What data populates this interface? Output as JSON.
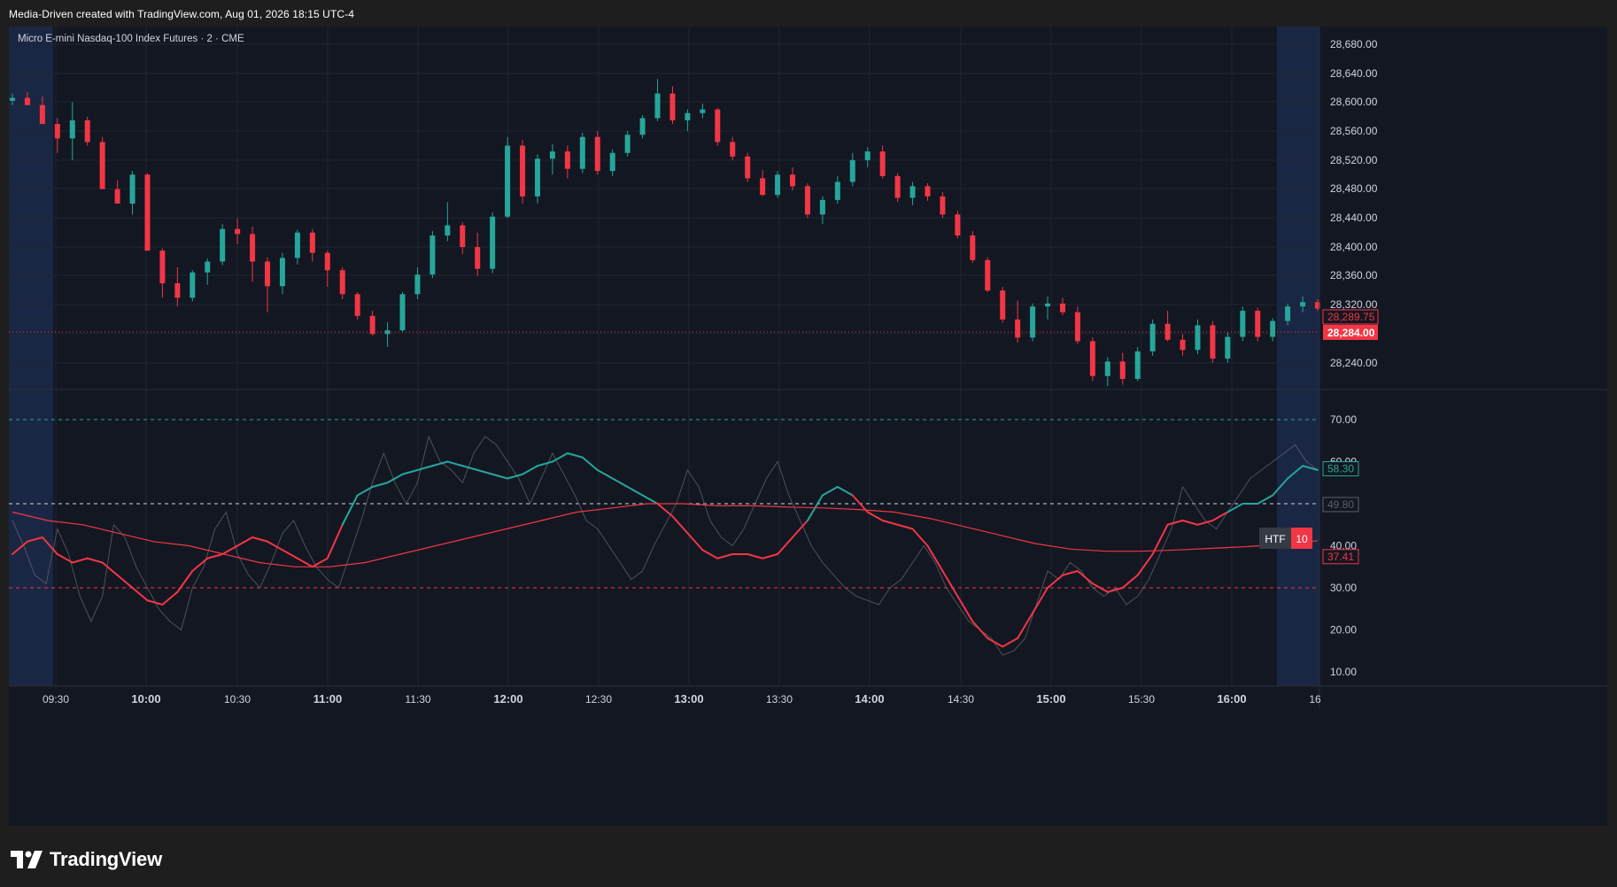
{
  "header": {
    "watermark_text": "Media-Driven created with TradingView.com, Aug 01, 2026 18:15 UTC-4"
  },
  "chart": {
    "symbol_label": "Micro E-mini Nasdaq-100 Index Futures · 2 · CME",
    "price_axis_labels": [
      "28,680.00",
      "28,640.00",
      "28,600.00",
      "28,560.00",
      "28,520.00",
      "28,480.00",
      "28,440.00",
      "28,400.00",
      "28,360.00",
      "28,320.00",
      "28,240.00"
    ],
    "current_price_tag": "28,289.75",
    "last_price_tag": "28,284.00",
    "time_axis_labels": [
      {
        "text": "09:30",
        "major": false
      },
      {
        "text": "10:00",
        "major": true
      },
      {
        "text": "10:30",
        "major": false
      },
      {
        "text": "11:00",
        "major": true
      },
      {
        "text": "11:30",
        "major": false
      },
      {
        "text": "12:00",
        "major": true
      },
      {
        "text": "12:30",
        "major": false
      },
      {
        "text": "13:00",
        "major": true
      },
      {
        "text": "13:30",
        "major": false
      },
      {
        "text": "14:00",
        "major": true
      },
      {
        "text": "14:30",
        "major": false
      },
      {
        "text": "15:00",
        "major": true
      },
      {
        "text": "15:30",
        "major": false
      },
      {
        "text": "16:00",
        "major": true
      },
      {
        "text": "16",
        "major": false
      }
    ],
    "indicator_axis_labels": [
      "70.00",
      "60.00",
      "40.00",
      "30.00",
      "20.00",
      "10.00"
    ],
    "indicator_tags": {
      "fast": "58.30",
      "mid": "49.80",
      "slow": "37.41"
    },
    "htf_badge": {
      "label": "HTF",
      "value": "10"
    },
    "colors": {
      "background": "#131722",
      "up": "#26a69a",
      "down": "#f23645",
      "grid": "#1f2430",
      "session_shade": "#1a2744"
    }
  },
  "chart_data": {
    "type": "candlestick",
    "price_ylim": [
      28200,
      28700
    ],
    "ohlc_approx": [
      [
        28602,
        28612,
        28596,
        28606
      ],
      [
        28606,
        28614,
        28600,
        28596
      ],
      [
        28596,
        28608,
        28580,
        28570
      ],
      [
        28570,
        28578,
        28530,
        28550
      ],
      [
        28550,
        28600,
        28520,
        28575
      ],
      [
        28575,
        28580,
        28540,
        28545
      ],
      [
        28545,
        28552,
        28500,
        28480
      ],
      [
        28480,
        28492,
        28470,
        28460
      ],
      [
        28460,
        28505,
        28445,
        28500
      ],
      [
        28500,
        28502,
        28395,
        28395
      ],
      [
        28395,
        28398,
        28330,
        28350
      ],
      [
        28350,
        28372,
        28318,
        28330
      ],
      [
        28330,
        28368,
        28325,
        28365
      ],
      [
        28365,
        28384,
        28348,
        28380
      ],
      [
        28380,
        28432,
        28375,
        28425
      ],
      [
        28425,
        28440,
        28404,
        28418
      ],
      [
        28418,
        28428,
        28352,
        28380
      ],
      [
        28380,
        28386,
        28310,
        28346
      ],
      [
        28346,
        28392,
        28335,
        28385
      ],
      [
        28385,
        28424,
        28376,
        28420
      ],
      [
        28420,
        28425,
        28380,
        28392
      ],
      [
        28392,
        28395,
        28345,
        28368
      ],
      [
        28368,
        28372,
        28328,
        28335
      ],
      [
        28335,
        28338,
        28300,
        28305
      ],
      [
        28305,
        28312,
        28278,
        28280
      ],
      [
        28280,
        28296,
        28262,
        28285
      ],
      [
        28285,
        28338,
        28283,
        28335
      ],
      [
        28335,
        28372,
        28328,
        28362
      ],
      [
        28362,
        28422,
        28357,
        28416
      ],
      [
        28416,
        28462,
        28408,
        28430
      ],
      [
        28430,
        28434,
        28390,
        28400
      ],
      [
        28400,
        28420,
        28360,
        28370
      ],
      [
        28370,
        28448,
        28364,
        28442
      ],
      [
        28442,
        28552,
        28440,
        28540
      ],
      [
        28540,
        28548,
        28460,
        28470
      ],
      [
        28470,
        28528,
        28460,
        28522
      ],
      [
        28522,
        28542,
        28500,
        28532
      ],
      [
        28532,
        28540,
        28495,
        28508
      ],
      [
        28508,
        28558,
        28502,
        28552
      ],
      [
        28552,
        28560,
        28500,
        28505
      ],
      [
        28505,
        28535,
        28498,
        28530
      ],
      [
        28530,
        28560,
        28525,
        28555
      ],
      [
        28555,
        28582,
        28550,
        28578
      ],
      [
        28578,
        28632,
        28574,
        28612
      ],
      [
        28612,
        28622,
        28570,
        28575
      ],
      [
        28575,
        28590,
        28560,
        28585
      ],
      [
        28585,
        28598,
        28578,
        28590
      ],
      [
        28590,
        28592,
        28540,
        28545
      ],
      [
        28545,
        28552,
        28520,
        28525
      ],
      [
        28525,
        28530,
        28490,
        28495
      ],
      [
        28495,
        28506,
        28470,
        28472
      ],
      [
        28472,
        28505,
        28468,
        28500
      ],
      [
        28500,
        28510,
        28478,
        28484
      ],
      [
        28484,
        28488,
        28440,
        28445
      ],
      [
        28445,
        28470,
        28432,
        28465
      ],
      [
        28465,
        28498,
        28460,
        28490
      ],
      [
        28490,
        28530,
        28484,
        28520
      ],
      [
        28520,
        28538,
        28510,
        28532
      ],
      [
        28532,
        28540,
        28495,
        28498
      ],
      [
        28498,
        28502,
        28462,
        28468
      ],
      [
        28468,
        28490,
        28458,
        28484
      ],
      [
        28484,
        28488,
        28464,
        28470
      ],
      [
        28470,
        28476,
        28440,
        28445
      ],
      [
        28445,
        28450,
        28412,
        28416
      ],
      [
        28416,
        28422,
        28378,
        28382
      ],
      [
        28382,
        28386,
        28338,
        28340
      ],
      [
        28340,
        28345,
        28296,
        28300
      ],
      [
        28300,
        28326,
        28268,
        28275
      ],
      [
        28275,
        28322,
        28270,
        28318
      ],
      [
        28318,
        28332,
        28300,
        28322
      ],
      [
        28322,
        28330,
        28306,
        28310
      ],
      [
        28310,
        28318,
        28266,
        28270
      ],
      [
        28270,
        28275,
        28215,
        28222
      ],
      [
        28222,
        28248,
        28208,
        28242
      ],
      [
        28242,
        28254,
        28210,
        28218
      ],
      [
        28218,
        28262,
        28215,
        28256
      ],
      [
        28256,
        28300,
        28250,
        28294
      ],
      [
        28294,
        28312,
        28270,
        28272
      ],
      [
        28272,
        28280,
        28250,
        28258
      ],
      [
        28258,
        28300,
        28252,
        28292
      ],
      [
        28292,
        28298,
        28240,
        28246
      ],
      [
        28246,
        28282,
        28240,
        28276
      ],
      [
        28276,
        28318,
        28270,
        28312
      ],
      [
        28312,
        28316,
        28270,
        28276
      ],
      [
        28276,
        28302,
        28270,
        28298
      ],
      [
        28298,
        28322,
        28292,
        28318
      ],
      [
        28318,
        28332,
        28310,
        28324
      ],
      [
        28324,
        28328,
        28312,
        28315
      ]
    ],
    "indicator_ylim": [
      5,
      75
    ],
    "levels": [
      70,
      50,
      30
    ],
    "fast_line_last": 58.3,
    "slow_line_last": 37.41
  }
}
